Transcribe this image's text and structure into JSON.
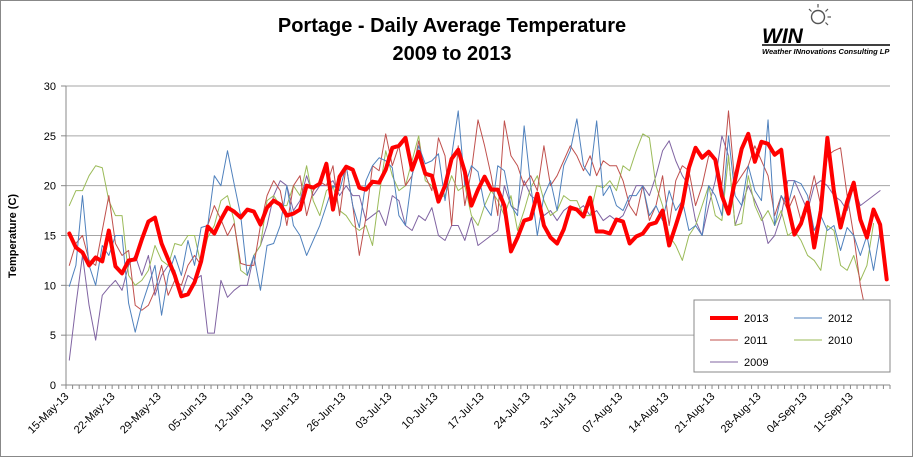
{
  "chart_data": {
    "type": "line",
    "title": [
      "Portage - Daily Average Temperature",
      "2009 to 2013"
    ],
    "ylabel": "Temperature (C)",
    "ylim": [
      0,
      30
    ],
    "yticks": [
      0,
      5,
      10,
      15,
      20,
      25,
      30
    ],
    "x_tick_labels": [
      "15-May-13",
      "22-May-13",
      "29-May-13",
      "05-Jun-13",
      "12-Jun-13",
      "19-Jun-13",
      "26-Jun-13",
      "03-Jul-13",
      "10-Jul-13",
      "17-Jul-13",
      "24-Jul-13",
      "31-Jul-13",
      "07-Aug-13",
      "14-Aug-13",
      "21-Aug-13",
      "28-Aug-13",
      "04-Sep-13",
      "11-Sep-13"
    ],
    "x_start": "15-May-13",
    "grid": "horizontal",
    "legend_position": "bottom-right",
    "series": [
      {
        "name": "2013",
        "color": "#ff0000",
        "width": 4,
        "values": [
          15.2,
          13.8,
          13.3,
          12.0,
          12.8,
          12.4,
          15.5,
          11.9,
          11.2,
          12.5,
          12.6,
          14.6,
          16.4,
          16.8,
          14.2,
          12.6,
          11.0,
          8.9,
          9.1,
          10.3,
          12.4,
          15.9,
          15.2,
          16.6,
          17.8,
          17.4,
          16.8,
          17.6,
          17.4,
          16.1,
          17.8,
          18.5,
          18.1,
          17.0,
          17.2,
          17.6,
          20.0,
          19.8,
          20.2,
          22.2,
          17.6,
          20.9,
          21.9,
          21.6,
          19.8,
          19.6,
          20.4,
          20.3,
          21.6,
          23.8,
          24.0,
          24.8,
          21.6,
          23.4,
          21.2,
          21.0,
          18.4,
          20.0,
          22.7,
          23.6,
          21.4,
          18.0,
          19.6,
          20.9,
          19.6,
          19.6,
          18.0,
          13.4,
          14.8,
          16.5,
          16.7,
          19.2,
          16.0,
          14.8,
          14.2,
          15.6,
          17.8,
          17.6,
          16.9,
          18.8,
          15.4,
          15.4,
          15.2,
          16.6,
          16.4,
          14.2,
          14.9,
          15.2,
          16.1,
          16.3,
          17.5,
          14.0,
          16.0,
          18.1,
          21.8,
          23.8,
          22.8,
          23.4,
          22.6,
          19.0,
          17.2,
          20.6,
          23.7,
          25.2,
          22.4,
          24.4,
          24.2,
          23.1,
          23.6,
          18.0,
          15.1,
          16.2,
          18.3,
          13.8,
          17.5,
          24.8,
          19.4,
          15.8,
          18.4,
          20.3,
          16.6,
          14.8,
          17.6,
          16.1,
          10.6
        ]
      },
      {
        "name": "2012",
        "color": "#4f81bd",
        "width": 1,
        "values": [
          9.9,
          12.0,
          19.0,
          12.0,
          10.0,
          14.0,
          13.0,
          15.0,
          15.0,
          8.2,
          5.3,
          8.0,
          10.0,
          12.0,
          7.0,
          11.0,
          13.0,
          11.0,
          14.5,
          12.0,
          15.8,
          16.0,
          21.0,
          20.0,
          23.5,
          20.2,
          17.0,
          11.0,
          13.0,
          9.5,
          14.0,
          14.2,
          16.0,
          20.0,
          16.0,
          15.0,
          13.0,
          14.5,
          16.0,
          18.0,
          20.0,
          19.5,
          22.0,
          18.0,
          15.8,
          20.5,
          22.0,
          22.8,
          22.5,
          21.8,
          17.0,
          16.0,
          21.0,
          24.0,
          22.2,
          22.5,
          23.2,
          18.5,
          23.0,
          27.5,
          20.0,
          22.0,
          21.4,
          18.0,
          17.0,
          22.0,
          21.5,
          18.0,
          17.0,
          26.0,
          20.0,
          15.0,
          19.0,
          20.5,
          17.5,
          22.0,
          23.5,
          26.7,
          22.0,
          21.0,
          26.5,
          19.0,
          20.0,
          18.0,
          17.5,
          19.0,
          19.0,
          20.0,
          17.0,
          18.0,
          16.5,
          19.5,
          17.5,
          18.5,
          15.5,
          16.0,
          15.0,
          20.0,
          19.0,
          17.0,
          25.0,
          19.0,
          18.0,
          22.0,
          19.5,
          18.5,
          26.6,
          16.0,
          19.0,
          18.0,
          20.5,
          20.2,
          19.0,
          15.5,
          17.0,
          15.5,
          16.0,
          13.5,
          15.8,
          15.0,
          13.0,
          15.0,
          11.5,
          15.5
        ]
      },
      {
        "name": "2011",
        "color": "#c0504d",
        "width": 1,
        "values": [
          12.0,
          14.2,
          15.0,
          12.5,
          12.0,
          15.5,
          19.0,
          14.2,
          13.0,
          13.5,
          8.0,
          7.5,
          8.0,
          9.5,
          12.0,
          9.0,
          10.5,
          10.0,
          12.0,
          13.0,
          12.0,
          16.0,
          18.0,
          16.6,
          15.0,
          16.2,
          12.2,
          12.0,
          12.0,
          16.0,
          19.0,
          20.5,
          19.5,
          16.0,
          20.0,
          21.0,
          17.0,
          19.5,
          20.4,
          20.0,
          22.0,
          17.0,
          22.0,
          18.0,
          13.0,
          16.8,
          22.0,
          21.5,
          25.2,
          22.0,
          24.0,
          20.0,
          21.0,
          24.5,
          21.0,
          19.5,
          24.8,
          23.0,
          16.0,
          24.0,
          18.0,
          21.5,
          26.6,
          24.0,
          21.0,
          17.0,
          26.5,
          23.0,
          22.0,
          20.0,
          21.0,
          19.5,
          24.0,
          20.0,
          21.0,
          22.5,
          24.0,
          23.0,
          21.5,
          23.0,
          21.0,
          22.5,
          22.0,
          22.0,
          20.5,
          18.0,
          17.0,
          20.0,
          16.5,
          18.0,
          21.0,
          16.0,
          20.5,
          22.0,
          21.5,
          18.0,
          20.0,
          23.0,
          22.8,
          20.0,
          27.5,
          20.0,
          21.0,
          22.0,
          24.0,
          22.5,
          21.0,
          17.0,
          19.0,
          17.5,
          19.0,
          16.5,
          18.0,
          21.0,
          18.0,
          23.0,
          23.5,
          23.8,
          19.0,
          15.0,
          10.0,
          6.8,
          8.5
        ]
      },
      {
        "name": "2010",
        "color": "#9bbb59",
        "width": 1,
        "values": [
          18.0,
          19.5,
          19.5,
          21.0,
          22.0,
          21.8,
          18.5,
          17.0,
          17.0,
          11.0,
          10.0,
          10.5,
          11.5,
          14.0,
          12.5,
          12.0,
          14.2,
          14.0,
          15.0,
          15.0,
          12.0,
          14.8,
          16.0,
          18.5,
          19.0,
          16.5,
          11.5,
          11.0,
          13.0,
          14.0,
          18.5,
          19.0,
          18.0,
          18.0,
          20.0,
          19.0,
          22.0,
          18.5,
          17.0,
          19.5,
          20.0,
          17.5,
          17.0,
          16.0,
          15.5,
          16.0,
          14.0,
          19.0,
          23.5,
          21.0,
          19.5,
          20.0,
          22.5,
          25.0,
          20.5,
          20.0,
          18.8,
          19.0,
          21.0,
          19.5,
          20.0,
          17.0,
          16.0,
          18.0,
          19.5,
          18.5,
          17.0,
          19.0,
          15.5,
          17.5,
          19.8,
          21.0,
          18.5,
          17.0,
          17.5,
          19.0,
          18.5,
          18.5,
          17.0,
          17.0,
          20.0,
          19.8,
          20.5,
          19.5,
          22.0,
          21.5,
          23.5,
          25.2,
          24.8,
          20.0,
          18.0,
          15.0,
          14.0,
          12.5,
          15.0,
          16.0,
          18.0,
          20.0,
          17.0,
          16.5,
          23.0,
          16.0,
          16.2,
          21.0,
          18.0,
          16.5,
          17.5,
          16.0,
          17.5,
          15.0,
          15.5,
          14.5,
          13.0,
          12.5,
          11.5,
          16.0,
          15.5,
          12.0,
          11.5,
          13.0,
          10.5,
          12.0,
          16.2
        ]
      },
      {
        "name": "2009",
        "color": "#8064a2",
        "width": 1,
        "values": [
          2.5,
          8.0,
          13.0,
          8.0,
          4.5,
          9.0,
          9.8,
          10.5,
          9.5,
          12.0,
          13.0,
          11.0,
          13.0,
          9.0,
          11.0,
          12.0,
          11.5,
          9.0,
          11.0,
          10.5,
          11.0,
          5.2,
          5.2,
          10.5,
          8.8,
          9.5,
          10.0,
          10.0,
          13.0,
          14.0,
          16.0,
          19.0,
          20.5,
          20.0,
          17.5,
          18.5,
          21.0,
          19.0,
          20.0,
          20.0,
          20.5,
          19.0,
          20.0,
          19.0,
          19.0,
          16.5,
          17.0,
          17.5,
          16.0,
          19.0,
          18.5,
          16.0,
          15.5,
          17.0,
          16.5,
          17.8,
          15.0,
          14.5,
          16.0,
          16.0,
          14.5,
          16.8,
          14.0,
          14.5,
          15.0,
          15.5,
          20.0,
          18.0,
          17.5,
          20.5,
          19.0,
          18.5,
          17.0,
          17.5,
          16.5,
          17.5,
          18.0,
          17.5,
          18.0,
          17.0,
          17.5,
          16.5,
          17.0,
          16.5,
          17.0,
          18.5,
          20.0,
          20.0,
          19.0,
          21.0,
          23.5,
          24.5,
          22.5,
          21.0,
          20.0,
          16.5,
          15.0,
          18.0,
          20.5,
          25.0,
          23.0,
          16.0,
          18.0,
          20.0,
          18.5,
          17.0,
          14.2,
          15.0,
          17.0,
          20.5,
          20.5,
          19.0,
          17.5,
          20.0,
          20.5,
          20.0,
          19.0,
          18.5,
          17.5,
          20.0,
          18.0,
          18.5,
          19.0,
          19.5
        ]
      }
    ]
  },
  "logo": {
    "mark": "WIN",
    "tagline": "Weather INnovations Consulting LP"
  }
}
